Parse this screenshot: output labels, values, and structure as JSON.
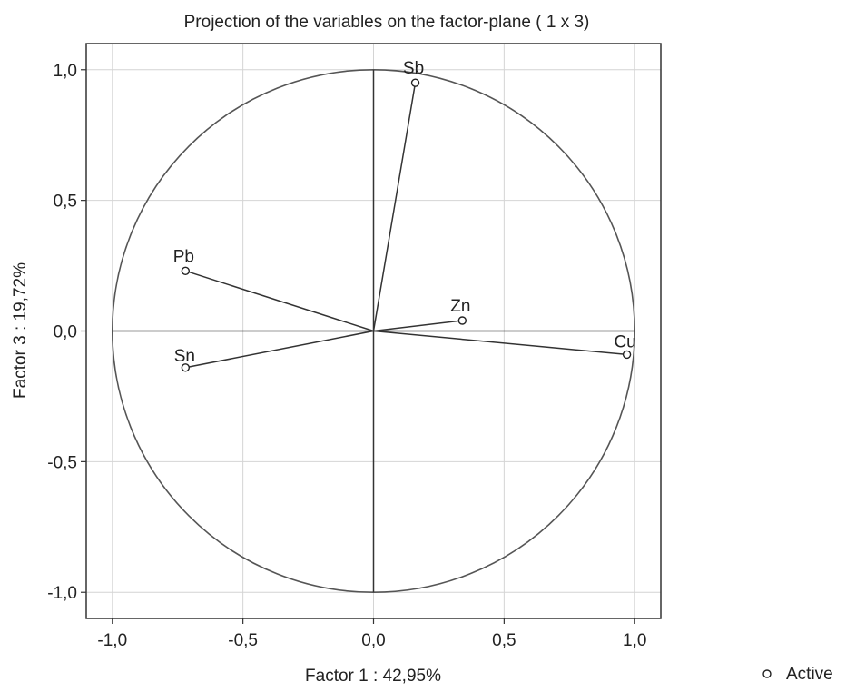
{
  "chart_data": {
    "type": "scatter",
    "title": "Projection of the variables on the factor-plane (  1 x   3)",
    "xlabel": "Factor 1 : 42,95%",
    "ylabel": "Factor 3 : 19,72%",
    "xlim": [
      -1.1,
      1.1
    ],
    "ylim": [
      -1.1,
      1.1
    ],
    "xticks": [
      -1.0,
      -0.5,
      0.0,
      0.5,
      1.0
    ],
    "yticks": [
      -1.0,
      -0.5,
      0.0,
      0.5,
      1.0
    ],
    "xtick_labels": [
      "-1,0",
      "-0,5",
      "0,0",
      "0,5",
      "1,0"
    ],
    "ytick_labels": [
      "-1,0",
      "-0,5",
      "0,0",
      "0,5",
      "1,0"
    ],
    "grid": true,
    "unit_circle": true,
    "legend": {
      "position": "bottom-right",
      "entries": [
        "Active"
      ]
    },
    "series": [
      {
        "name": "Active",
        "points": [
          {
            "label": "Sb",
            "x": 0.16,
            "y": 0.95
          },
          {
            "label": "Pb",
            "x": -0.72,
            "y": 0.23
          },
          {
            "label": "Zn",
            "x": 0.34,
            "y": 0.04
          },
          {
            "label": "Cu",
            "x": 0.97,
            "y": -0.09
          },
          {
            "label": "Sn",
            "x": -0.72,
            "y": -0.14
          }
        ]
      }
    ]
  }
}
